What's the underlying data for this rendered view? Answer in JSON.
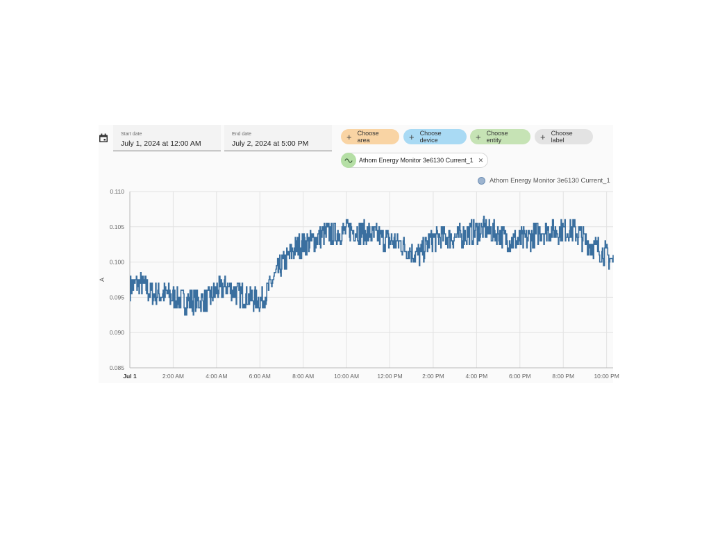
{
  "date_range": {
    "start_label": "Start date",
    "start_value": "July 1, 2024 at 12:00 AM",
    "end_label": "End date",
    "end_value": "July 2, 2024 at 5:00 PM"
  },
  "target_picker": {
    "chips": [
      {
        "label": "Choose area",
        "color": "#f9d4a4"
      },
      {
        "label": "Choose device",
        "color": "#a9daf4"
      },
      {
        "label": "Choose entity",
        "color": "#c6e3b5"
      },
      {
        "label": "Choose label",
        "color": "#e3e3e3"
      }
    ],
    "selected_entity": "Athom Energy Monitor 3e6130 Current_1"
  },
  "icons": {
    "calendar": "calendar-icon",
    "entity": "sine-wave-icon",
    "remove": "close-icon",
    "add": "plus-icon"
  },
  "chart_data": {
    "type": "line",
    "ylabel": "A",
    "ylim": [
      0.085,
      0.11
    ],
    "yticks": [
      "0.085",
      "0.090",
      "0.095",
      "0.100",
      "0.105",
      "0.110"
    ],
    "xlim_hours": [
      0,
      22.3
    ],
    "xticks": [
      {
        "hour": 0,
        "label": "Jul 1"
      },
      {
        "hour": 2,
        "label": "2:00 AM"
      },
      {
        "hour": 4,
        "label": "4:00 AM"
      },
      {
        "hour": 6,
        "label": "6:00 AM"
      },
      {
        "hour": 8,
        "label": "8:00 AM"
      },
      {
        "hour": 10,
        "label": "10:00 AM"
      },
      {
        "hour": 12,
        "label": "12:00 PM"
      },
      {
        "hour": 14,
        "label": "2:00 PM"
      },
      {
        "hour": 16,
        "label": "4:00 PM"
      },
      {
        "hour": 18,
        "label": "6:00 PM"
      },
      {
        "hour": 20,
        "label": "8:00 PM"
      },
      {
        "hour": 22,
        "label": "10:00 PM"
      }
    ],
    "series": [
      {
        "name": "Athom Energy Monitor 3e6130 Current_1",
        "color": "#3a6f9f",
        "x": [
          0,
          0.5,
          1,
          1.5,
          2,
          2.5,
          3,
          3.5,
          4,
          4.5,
          5,
          5.5,
          6,
          6.3,
          6.6,
          7,
          7.3,
          7.6,
          8,
          8.5,
          9,
          9.5,
          10,
          10.5,
          11,
          11.5,
          12,
          12.5,
          13,
          13.4,
          13.8,
          14.2,
          14.6,
          15,
          15.5,
          16,
          16.5,
          17,
          17.5,
          18,
          18.5,
          19,
          19.5,
          20,
          20.5,
          21,
          21.5,
          22,
          22.3
        ],
        "y": [
          0.0965,
          0.097,
          0.0955,
          0.0955,
          0.095,
          0.0945,
          0.0945,
          0.0945,
          0.096,
          0.0965,
          0.0955,
          0.095,
          0.0945,
          0.0955,
          0.0975,
          0.0995,
          0.1005,
          0.102,
          0.1025,
          0.103,
          0.104,
          0.104,
          0.1045,
          0.1045,
          0.104,
          0.1035,
          0.103,
          0.1025,
          0.1015,
          0.101,
          0.103,
          0.1035,
          0.1035,
          0.1035,
          0.104,
          0.1045,
          0.1045,
          0.104,
          0.103,
          0.103,
          0.1035,
          0.1045,
          0.1045,
          0.1045,
          0.1045,
          0.103,
          0.102,
          0.101,
          0.1
        ],
        "amplitude": 0.0018
      }
    ]
  }
}
